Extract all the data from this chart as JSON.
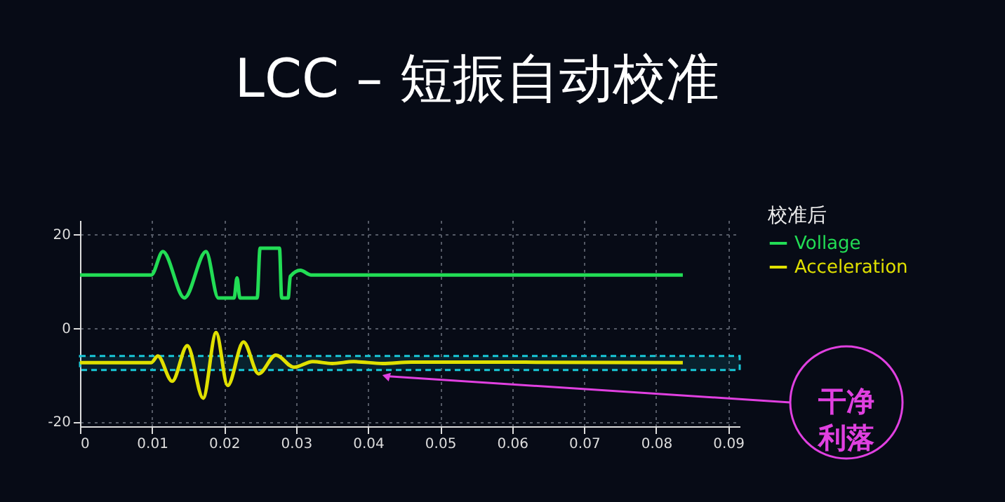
{
  "chart_data": {
    "type": "line",
    "title": "LCC – 短振自动校准",
    "legend_title": "校准后",
    "legend": "top right",
    "grid": true,
    "xlim": [
      0,
      0.0916
    ],
    "xticks": [
      0,
      0.01,
      0.02,
      0.03,
      0.04,
      0.05,
      0.06,
      0.07,
      0.08,
      0.09
    ],
    "ylim": [
      -21,
      23
    ],
    "yticks": [
      -20,
      0,
      20
    ],
    "series": [
      {
        "name": "Vollage",
        "color": "#22dd55",
        "x": [
          0,
          0.0099,
          0.0115,
          0.0145,
          0.0175,
          0.0192,
          0.0214,
          0.0218,
          0.0222,
          0.0246,
          0.025,
          0.0277,
          0.028,
          0.0289,
          0.0292,
          0.0306,
          0.0321,
          0.0837
        ],
        "values": [
          11.3,
          11.3,
          16.3,
          6.4,
          16.3,
          6.4,
          6.4,
          10.7,
          6.4,
          6.4,
          17,
          17,
          6.4,
          6.4,
          11,
          12.3,
          11.3,
          11.3
        ]
      },
      {
        "name": "Acceleration",
        "color": "#e0e000",
        "x": [
          0,
          0.0099,
          0.0108,
          0.0128,
          0.0149,
          0.0171,
          0.0189,
          0.0205,
          0.0227,
          0.0248,
          0.0272,
          0.0297,
          0.0323,
          0.035,
          0.038,
          0.042,
          0.046,
          0.0837
        ],
        "values": [
          -7.4,
          -7.4,
          -6,
          -11.4,
          -3.8,
          -15,
          -1,
          -12.3,
          -3,
          -9.8,
          -5.8,
          -8.4,
          -7.2,
          -7.6,
          -7.2,
          -7.6,
          -7.3,
          -7.4
        ]
      }
    ],
    "bands": [
      {
        "axis": "y",
        "from": -9,
        "to": -6,
        "color": "#19c8d8"
      }
    ],
    "annotations": [
      {
        "text": "干净利落",
        "x": 0.0425,
        "y": -10.3
      }
    ]
  }
}
